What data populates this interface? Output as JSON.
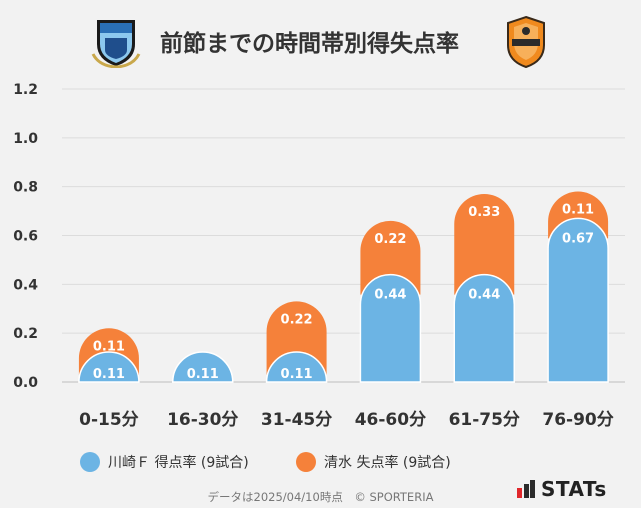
{
  "header": {
    "title": "前節までの時間帯別得失点率",
    "left_crest": "kawasaki-frontale-crest",
    "right_crest": "shimizu-s-pulse-crest"
  },
  "colors": {
    "home": "#6cb4e4",
    "away": "#f5813a",
    "grid": "#dcdcdc",
    "background": "#f2f2f2"
  },
  "chart_data": {
    "type": "bar",
    "stacked": true,
    "categories": [
      "0-15分",
      "16-30分",
      "31-45分",
      "46-60分",
      "61-75分",
      "76-90分"
    ],
    "series": [
      {
        "name": "川崎Ｆ 得点率 (9試合)",
        "values": [
          0.11,
          0.11,
          0.11,
          0.44,
          0.44,
          0.67
        ],
        "labels": [
          "0.11",
          "0.11",
          "0.11",
          "0.44",
          "0.44",
          "0.67"
        ],
        "color": "#6cb4e4"
      },
      {
        "name": "清水 失点率 (9試合)",
        "values": [
          0.11,
          0,
          0.22,
          0.22,
          0.33,
          0.11
        ],
        "labels": [
          "0.11",
          "",
          "0.22",
          "0.22",
          "0.33",
          "0.11"
        ],
        "color": "#f5813a"
      }
    ],
    "yticks": [
      "0.0",
      "0.2",
      "0.4",
      "0.6",
      "0.8",
      "1.0",
      "1.2"
    ],
    "ylim": [
      0,
      1.2
    ],
    "grid": true,
    "legend": "bottom"
  },
  "legend": {
    "home_label": "川崎Ｆ 得点率 (9試合)",
    "away_label": "清水 失点率 (9試合)"
  },
  "footer": {
    "note": "データは2025/04/10時点　© SPORTERIA",
    "brand": "STATs"
  }
}
